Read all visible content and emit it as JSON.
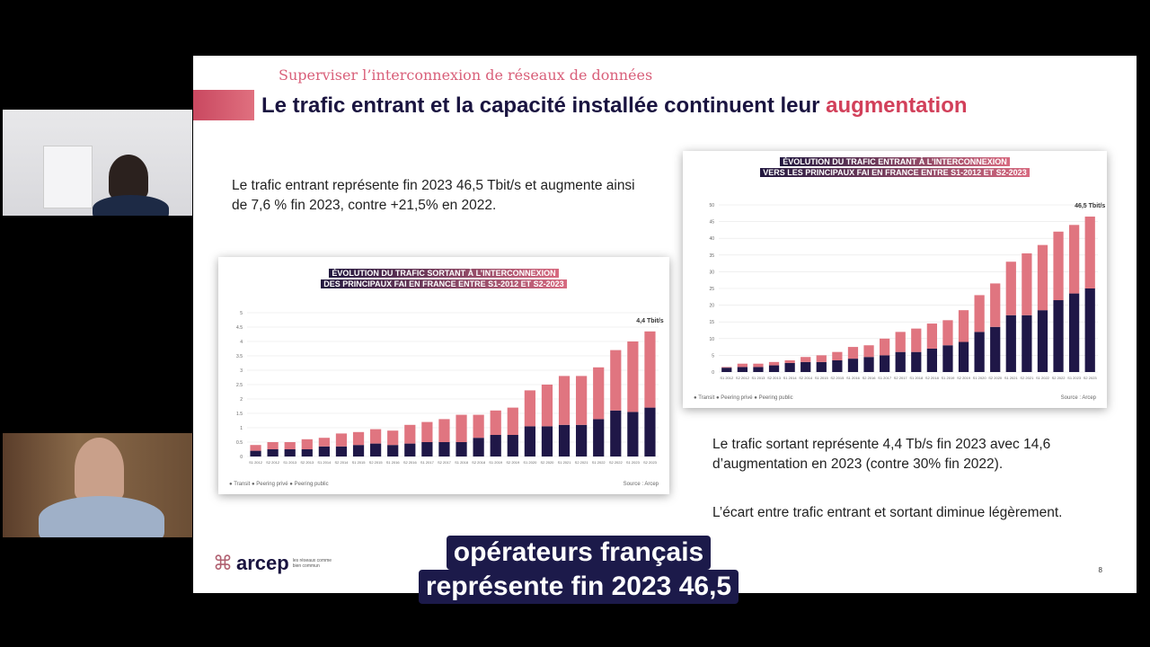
{
  "slide": {
    "kicker": "Superviser l’interconnexion de réseaux de données",
    "title_main": "Le trafic entrant et la capacité installée continuent leur ",
    "title_accent": "augmentation",
    "para1": "Le trafic entrant représente fin 2023 46,5 Tbit/s et augmente ainsi de 7,6 % fin 2023, contre +21,5% en 2022.",
    "para2": "Le trafic sortant représente 4,4 Tb/s fin 2023 avec 14,6 d’augmentation en 2023 (contre 30% fin 2022).",
    "para3": "L’écart entre trafic entrant et sortant diminue légèrement.",
    "logo_text": "arcep",
    "logo_tagline": "les réseaux comme bien commun",
    "page_number": "8"
  },
  "captions": {
    "line1": "opérateurs français",
    "line2": "représente fin 2023 46,5"
  },
  "colors": {
    "dark": "#1f1747",
    "pink": "#e07580",
    "accent": "#d2405a"
  },
  "chart_data": [
    {
      "type": "bar",
      "stacked": true,
      "title_line1": "ÉVOLUTION DU TRAFIC SORTANT À L’INTERCONNEXION",
      "title_line2": "DES PRINCIPAUX FAI EN FRANCE ENTRE S1-2012 ET S2-2023",
      "annotation": "4,4 Tbit/s",
      "legend": [
        "Transit",
        "Peering privé",
        "Peering public"
      ],
      "source": "Source : Arcep",
      "ylim": [
        0,
        5
      ],
      "yticks": [
        0,
        0.5,
        1,
        1.5,
        2,
        2.5,
        3,
        3.5,
        4,
        4.5,
        5
      ],
      "categories": [
        "S1 2012",
        "S2 2012",
        "S1 2013",
        "S2 2013",
        "S1 2014",
        "S2 2014",
        "S1 2015",
        "S2 2015",
        "S1 2016",
        "S2 2016",
        "S1 2017",
        "S2 2017",
        "S1 2018",
        "S2 2018",
        "S1 2019",
        "S2 2019",
        "S1 2020",
        "S2 2020",
        "S1 2021",
        "S2 2021",
        "S1 2022",
        "S2 2022",
        "S1 2023",
        "S2 2023"
      ],
      "series": [
        {
          "name": "Transit + Peering privé",
          "values": [
            0.2,
            0.25,
            0.25,
            0.25,
            0.35,
            0.35,
            0.4,
            0.45,
            0.4,
            0.45,
            0.5,
            0.5,
            0.5,
            0.65,
            0.75,
            0.75,
            1.05,
            1.05,
            1.1,
            1.1,
            1.3,
            1.6,
            1.55,
            1.7
          ]
        },
        {
          "name": "Peering public",
          "values": [
            0.2,
            0.25,
            0.25,
            0.35,
            0.3,
            0.45,
            0.45,
            0.5,
            0.5,
            0.65,
            0.7,
            0.8,
            0.95,
            0.8,
            0.85,
            0.95,
            1.25,
            1.45,
            1.7,
            1.7,
            1.8,
            2.1,
            2.45,
            2.65
          ]
        }
      ]
    },
    {
      "type": "bar",
      "stacked": true,
      "title_line1": "ÉVOLUTION DU TRAFIC ENTRANT À L’INTERCONNEXION",
      "title_line2": "VERS LES PRINCIPAUX FAI EN FRANCE ENTRE S1-2012 ET S2-2023",
      "annotation": "46,5 Tbit/s",
      "legend": [
        "Transit",
        "Peering privé",
        "Peering public"
      ],
      "source": "Source : Arcep",
      "ylim": [
        0,
        50
      ],
      "yticks": [
        0,
        5,
        10,
        15,
        20,
        25,
        30,
        35,
        40,
        45,
        50
      ],
      "categories": [
        "S1 2012",
        "S2 2012",
        "S1 2013",
        "S2 2013",
        "S1 2014",
        "S2 2014",
        "S1 2015",
        "S2 2015",
        "S1 2016",
        "S2 2016",
        "S1 2017",
        "S2 2017",
        "S1 2018",
        "S2 2018",
        "S1 2019",
        "S2 2019",
        "S1 2020",
        "S2 2020",
        "S1 2021",
        "S2 2021",
        "S1 2022",
        "S2 2022",
        "S1 2023",
        "S2 2023"
      ],
      "series": [
        {
          "name": "Transit + Peering privé",
          "values": [
            1.3,
            1.5,
            1.5,
            2,
            2.7,
            3,
            3,
            3.5,
            4,
            4.5,
            5,
            6,
            6,
            7,
            8,
            9,
            12,
            13.5,
            17,
            17,
            18.5,
            21.5,
            23.5,
            25
          ]
        },
        {
          "name": "Peering public",
          "values": [
            0.2,
            1,
            1,
            1,
            0.8,
            1.5,
            2,
            2.5,
            3.5,
            3.5,
            5,
            6,
            7,
            7.5,
            7.5,
            9.5,
            11,
            13,
            16,
            18.5,
            19.5,
            20.5,
            20.5,
            21.5
          ]
        }
      ]
    }
  ]
}
